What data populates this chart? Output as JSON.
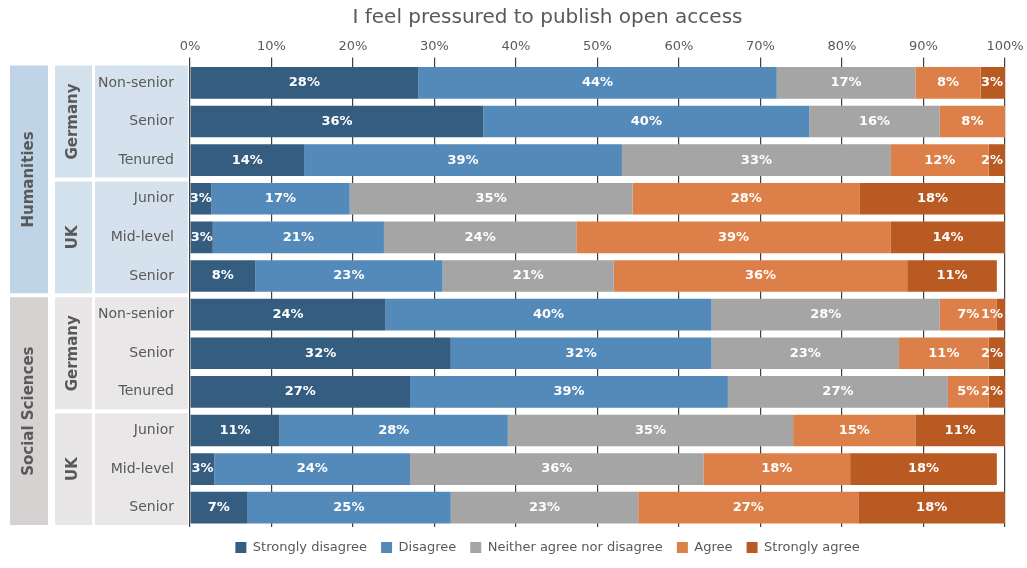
{
  "chart_data": {
    "type": "bar",
    "orientation": "horizontal",
    "stacked": true,
    "title": "I feel pressured to publish open access",
    "categories": [
      "Non-senior",
      "Senior",
      "Tenured",
      "Junior",
      "Mid-level",
      "Senior",
      "Non-senior",
      "Senior",
      "Tenured",
      "Junior",
      "Mid-level",
      "Senior"
    ],
    "annotations": [
      "Humanities",
      "Germany",
      "UK",
      "Social Sciences",
      "Germany",
      "UK"
    ],
    "xlim": [
      0,
      100
    ],
    "xticks": [
      {
        "value": 0,
        "label": "0%"
      },
      {
        "value": 10,
        "label": "10%"
      },
      {
        "value": 20,
        "label": "20%"
      },
      {
        "value": 30,
        "label": "30%"
      },
      {
        "value": 40,
        "label": "40%"
      },
      {
        "value": 50,
        "label": "50%"
      },
      {
        "value": 60,
        "label": "60%"
      },
      {
        "value": 70,
        "label": "70%"
      },
      {
        "value": 80,
        "label": "80%"
      },
      {
        "value": 90,
        "label": "90%"
      },
      {
        "value": 100,
        "label": "100%"
      }
    ],
    "grid": "x",
    "legend": "bottom",
    "series": [
      {
        "name": "Strongly disagree",
        "color": "#355d80",
        "values": [
          28,
          36,
          14,
          2.6,
          2.8,
          8,
          24,
          32,
          27,
          11,
          3,
          7
        ],
        "value_labels": [
          "28%",
          "36%",
          "14%",
          "3%",
          "3%",
          "8%",
          "24%",
          "32%",
          "27%",
          "11%",
          "3%",
          "7%"
        ]
      },
      {
        "name": "Disagree",
        "color": "#548ab9",
        "values": [
          44,
          40,
          39,
          17,
          21,
          23,
          40,
          32,
          39,
          28,
          24,
          25
        ],
        "value_labels": [
          "44%",
          "40%",
          "39%",
          "17%",
          "21%",
          "23%",
          "40%",
          "32%",
          "39%",
          "28%",
          "24%",
          "25%"
        ]
      },
      {
        "name": "Neither agree nor disagree",
        "color": "#a5a5a5",
        "values": [
          17,
          16,
          33,
          34.7,
          23.6,
          21,
          28,
          23,
          27,
          35,
          36,
          23
        ],
        "value_labels": [
          "17%",
          "16%",
          "33%",
          "35%",
          "24%",
          "21%",
          "28%",
          "23%",
          "27%",
          "35%",
          "36%",
          "23%"
        ]
      },
      {
        "name": "Agree",
        "color": "#dd7f48",
        "values": [
          8,
          8,
          12,
          27.9,
          38.6,
          36,
          7,
          11,
          5,
          15,
          18,
          27
        ],
        "value_labels": [
          "8%",
          "8%",
          "12%",
          "28%",
          "39%",
          "36%",
          "7%",
          "11%",
          "5%",
          "15%",
          "18%",
          "27%"
        ]
      },
      {
        "name": "Strongly agree",
        "color": "#b85a22",
        "values": [
          3,
          null,
          2,
          17.8,
          14,
          11,
          1,
          2,
          2,
          11,
          18,
          18
        ],
        "value_labels": [
          "3%",
          null,
          "2%",
          "18%",
          "14%",
          "11%",
          "1%",
          "2%",
          "2%",
          "11%",
          "18%",
          "18%"
        ]
      }
    ]
  }
}
